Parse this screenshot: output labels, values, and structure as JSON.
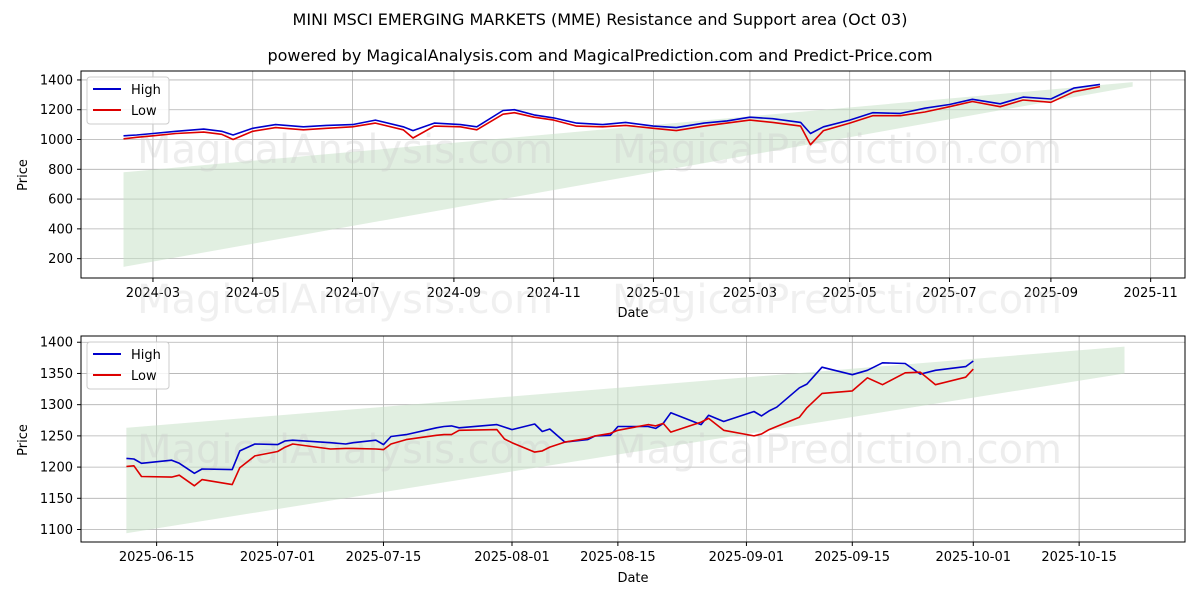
{
  "header": {
    "title": "MINI MSCI EMERGING MARKETS (MME) Resistance and Support area (Oct 03)",
    "subtitle": "powered by MagicalAnalysis.com and MagicalPrediction.com and Predict-Price.com"
  },
  "watermark": {
    "top": "MagicalAnalysis.com    MagicalPrediction.com",
    "bottom": "MagicalAnalysis.com    MagicalPrediction.com"
  },
  "colors": {
    "high": "#0000cc",
    "low": "#dd0000",
    "band": "#c8e2c8",
    "grid": "#b0b0b0"
  },
  "chart_data": [
    {
      "type": "line",
      "xlabel": "Date",
      "ylabel": "Price",
      "xlim": [
        "2024-01-17",
        "2025-11-22"
      ],
      "ylim": [
        70,
        1460
      ],
      "xticks": [
        "2024-03-01",
        "2024-05-01",
        "2024-07-01",
        "2024-09-01",
        "2024-11-01",
        "2025-01-01",
        "2025-03-01",
        "2025-05-01",
        "2025-07-01",
        "2025-09-01",
        "2025-11-01"
      ],
      "xtick_labels": [
        "2024-03",
        "2024-05",
        "2024-07",
        "2024-09",
        "2024-11",
        "2025-01",
        "2025-03",
        "2025-05",
        "2025-07",
        "2025-09",
        "2025-11"
      ],
      "yticks": [
        200,
        400,
        600,
        800,
        1000,
        1200,
        1400
      ],
      "legend": "top-left",
      "grid": true,
      "band": {
        "x": [
          "2024-02-12",
          "2025-10-21"
        ],
        "upper": [
          780,
          1385
        ],
        "lower": [
          145,
          1355
        ]
      },
      "series": [
        {
          "name": "High",
          "x": [
            "2024-02-12",
            "2024-02-20",
            "2024-03-01",
            "2024-03-15",
            "2024-04-01",
            "2024-04-12",
            "2024-04-19",
            "2024-05-01",
            "2024-05-15",
            "2024-06-01",
            "2024-06-15",
            "2024-07-01",
            "2024-07-15",
            "2024-08-01",
            "2024-08-07",
            "2024-08-20",
            "2024-09-05",
            "2024-09-15",
            "2024-10-01",
            "2024-10-08",
            "2024-10-20",
            "2024-11-01",
            "2024-11-15",
            "2024-12-01",
            "2024-12-15",
            "2025-01-01",
            "2025-01-15",
            "2025-02-01",
            "2025-02-15",
            "2025-03-01",
            "2025-03-15",
            "2025-04-01",
            "2025-04-07",
            "2025-04-15",
            "2025-05-01",
            "2025-05-15",
            "2025-06-01",
            "2025-06-16",
            "2025-07-01",
            "2025-07-15",
            "2025-08-01",
            "2025-08-15",
            "2025-09-01",
            "2025-09-15",
            "2025-10-01"
          ],
          "values": [
            1025,
            1030,
            1040,
            1055,
            1070,
            1055,
            1030,
            1075,
            1100,
            1085,
            1095,
            1100,
            1130,
            1085,
            1060,
            1110,
            1100,
            1085,
            1195,
            1200,
            1165,
            1145,
            1110,
            1100,
            1115,
            1090,
            1080,
            1110,
            1125,
            1150,
            1140,
            1115,
            1040,
            1085,
            1130,
            1180,
            1175,
            1210,
            1235,
            1270,
            1240,
            1285,
            1272,
            1345,
            1370
          ]
        },
        {
          "name": "Low",
          "x": [
            "2024-02-12",
            "2024-02-20",
            "2024-03-01",
            "2024-03-15",
            "2024-04-01",
            "2024-04-12",
            "2024-04-19",
            "2024-05-01",
            "2024-05-15",
            "2024-06-01",
            "2024-06-15",
            "2024-07-01",
            "2024-07-15",
            "2024-08-01",
            "2024-08-07",
            "2024-08-20",
            "2024-09-05",
            "2024-09-15",
            "2024-10-01",
            "2024-10-08",
            "2024-10-20",
            "2024-11-01",
            "2024-11-15",
            "2024-12-01",
            "2024-12-15",
            "2025-01-01",
            "2025-01-15",
            "2025-02-01",
            "2025-02-15",
            "2025-03-01",
            "2025-03-15",
            "2025-04-01",
            "2025-04-07",
            "2025-04-15",
            "2025-05-01",
            "2025-05-15",
            "2025-06-01",
            "2025-06-16",
            "2025-07-01",
            "2025-07-15",
            "2025-08-01",
            "2025-08-15",
            "2025-09-01",
            "2025-09-15",
            "2025-10-01"
          ],
          "values": [
            1005,
            1015,
            1025,
            1040,
            1050,
            1035,
            1000,
            1055,
            1080,
            1065,
            1075,
            1085,
            1110,
            1065,
            1010,
            1090,
            1085,
            1065,
            1170,
            1180,
            1150,
            1130,
            1090,
            1085,
            1095,
            1075,
            1060,
            1090,
            1110,
            1130,
            1115,
            1090,
            965,
            1060,
            1110,
            1160,
            1160,
            1185,
            1220,
            1255,
            1220,
            1265,
            1250,
            1320,
            1355
          ]
        }
      ]
    },
    {
      "type": "line",
      "xlabel": "Date",
      "ylabel": "Price",
      "xlim": [
        "2025-06-05",
        "2025-10-29"
      ],
      "ylim": [
        1080,
        1410
      ],
      "xticks": [
        "2025-06-15",
        "2025-07-01",
        "2025-07-15",
        "2025-08-01",
        "2025-08-15",
        "2025-09-01",
        "2025-09-15",
        "2025-10-01",
        "2025-10-15"
      ],
      "xtick_labels": [
        "2025-06-15",
        "2025-07-01",
        "2025-07-15",
        "2025-08-01",
        "2025-08-15",
        "2025-09-01",
        "2025-09-15",
        "2025-10-01",
        "2025-10-15"
      ],
      "yticks": [
        1100,
        1150,
        1200,
        1250,
        1300,
        1350,
        1400
      ],
      "legend": "top-left",
      "grid": true,
      "band": {
        "x": [
          "2025-06-11",
          "2025-10-21"
        ],
        "upper": [
          1263,
          1393
        ],
        "lower": [
          1094,
          1350
        ]
      },
      "series": [
        {
          "name": "High",
          "x": [
            "2025-06-11",
            "2025-06-12",
            "2025-06-13",
            "2025-06-17",
            "2025-06-18",
            "2025-06-20",
            "2025-06-21",
            "2025-06-25",
            "2025-06-26",
            "2025-06-28",
            "2025-07-01",
            "2025-07-02",
            "2025-07-03",
            "2025-07-08",
            "2025-07-10",
            "2025-07-11",
            "2025-07-14",
            "2025-07-15",
            "2025-07-16",
            "2025-07-18",
            "2025-07-22",
            "2025-07-23",
            "2025-07-24",
            "2025-07-25",
            "2025-07-30",
            "2025-07-31",
            "2025-08-01",
            "2025-08-04",
            "2025-08-05",
            "2025-08-06",
            "2025-08-08",
            "2025-08-11",
            "2025-08-12",
            "2025-08-14",
            "2025-08-15",
            "2025-08-19",
            "2025-08-20",
            "2025-08-21",
            "2025-08-22",
            "2025-08-26",
            "2025-08-27",
            "2025-08-29",
            "2025-09-02",
            "2025-09-03",
            "2025-09-04",
            "2025-09-05",
            "2025-09-08",
            "2025-09-09",
            "2025-09-11",
            "2025-09-15",
            "2025-09-17",
            "2025-09-19",
            "2025-09-22",
            "2025-09-24",
            "2025-09-26",
            "2025-09-30",
            "2025-10-01"
          ],
          "values": [
            1214,
            1213,
            1206,
            1211,
            1206,
            1190,
            1197,
            1196,
            1226,
            1237,
            1236,
            1242,
            1243,
            1239,
            1237,
            1239,
            1243,
            1236,
            1249,
            1252,
            1263,
            1265,
            1266,
            1263,
            1268,
            1264,
            1260,
            1269,
            1257,
            1261,
            1240,
            1244,
            1250,
            1251,
            1265,
            1265,
            1262,
            1270,
            1287,
            1268,
            1283,
            1273,
            1289,
            1282,
            1290,
            1296,
            1327,
            1333,
            1360,
            1348,
            1355,
            1367,
            1366,
            1349,
            1355,
            1361,
            1370
          ]
        },
        {
          "name": "Low",
          "x": [
            "2025-06-11",
            "2025-06-12",
            "2025-06-13",
            "2025-06-17",
            "2025-06-18",
            "2025-06-20",
            "2025-06-21",
            "2025-06-25",
            "2025-06-26",
            "2025-06-28",
            "2025-07-01",
            "2025-07-02",
            "2025-07-03",
            "2025-07-08",
            "2025-07-10",
            "2025-07-11",
            "2025-07-14",
            "2025-07-15",
            "2025-07-16",
            "2025-07-18",
            "2025-07-22",
            "2025-07-23",
            "2025-07-24",
            "2025-07-25",
            "2025-07-30",
            "2025-07-31",
            "2025-08-01",
            "2025-08-04",
            "2025-08-05",
            "2025-08-06",
            "2025-08-08",
            "2025-08-11",
            "2025-08-12",
            "2025-08-14",
            "2025-08-15",
            "2025-08-19",
            "2025-08-20",
            "2025-08-21",
            "2025-08-22",
            "2025-08-26",
            "2025-08-27",
            "2025-08-29",
            "2025-09-02",
            "2025-09-03",
            "2025-09-04",
            "2025-09-05",
            "2025-09-08",
            "2025-09-09",
            "2025-09-11",
            "2025-09-15",
            "2025-09-17",
            "2025-09-19",
            "2025-09-22",
            "2025-09-24",
            "2025-09-26",
            "2025-09-30",
            "2025-10-01"
          ],
          "values": [
            1201,
            1202,
            1185,
            1184,
            1187,
            1170,
            1180,
            1172,
            1199,
            1218,
            1225,
            1232,
            1237,
            1229,
            1230,
            1230,
            1229,
            1228,
            1237,
            1244,
            1251,
            1252,
            1252,
            1259,
            1260,
            1245,
            1239,
            1224,
            1226,
            1232,
            1240,
            1246,
            1250,
            1254,
            1259,
            1268,
            1266,
            1270,
            1256,
            1272,
            1278,
            1259,
            1250,
            1253,
            1260,
            1265,
            1280,
            1295,
            1318,
            1322,
            1343,
            1332,
            1351,
            1352,
            1332,
            1344,
            1357
          ]
        }
      ]
    }
  ]
}
